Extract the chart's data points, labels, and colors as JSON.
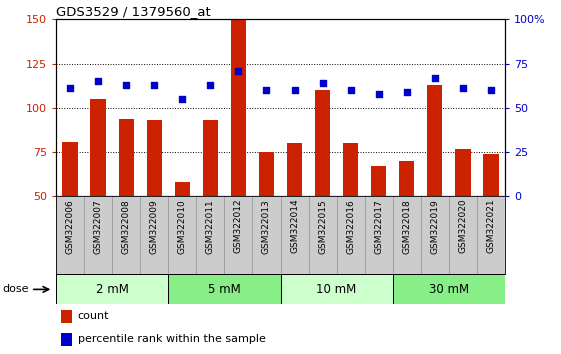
{
  "title": "GDS3529 / 1379560_at",
  "categories": [
    "GSM322006",
    "GSM322007",
    "GSM322008",
    "GSM322009",
    "GSM322010",
    "GSM322011",
    "GSM322012",
    "GSM322013",
    "GSM322014",
    "GSM322015",
    "GSM322016",
    "GSM322017",
    "GSM322018",
    "GSM322019",
    "GSM322020",
    "GSM322021"
  ],
  "bar_values": [
    81,
    105,
    94,
    93,
    58,
    93,
    150,
    75,
    80,
    110,
    80,
    67,
    70,
    113,
    77,
    74
  ],
  "scatter_values": [
    111,
    115,
    113,
    113,
    105,
    113,
    121,
    110,
    110,
    114,
    110,
    108,
    109,
    117,
    111,
    110
  ],
  "bar_color": "#cc2200",
  "scatter_color": "#0000cc",
  "ylim_left": [
    50,
    150
  ],
  "yticks_left": [
    50,
    75,
    100,
    125,
    150
  ],
  "ytick_labels_right": [
    "0",
    "25",
    "50",
    "75",
    "100%"
  ],
  "grid_lines": [
    75,
    100,
    125
  ],
  "dose_groups": [
    {
      "label": "2 mM",
      "start": 0,
      "end": 3,
      "color": "#ccffcc"
    },
    {
      "label": "5 mM",
      "start": 4,
      "end": 7,
      "color": "#88ee88"
    },
    {
      "label": "10 mM",
      "start": 8,
      "end": 11,
      "color": "#ccffcc"
    },
    {
      "label": "30 mM",
      "start": 12,
      "end": 15,
      "color": "#88ee88"
    }
  ],
  "dose_label": "dose",
  "legend_count_label": "count",
  "legend_pct_label": "percentile rank within the sample",
  "tick_color_left": "#cc2200",
  "tick_color_right": "#0000cc",
  "bar_width": 0.55,
  "xticklabel_bg": "#cccccc",
  "dose_band_border": "#666666"
}
